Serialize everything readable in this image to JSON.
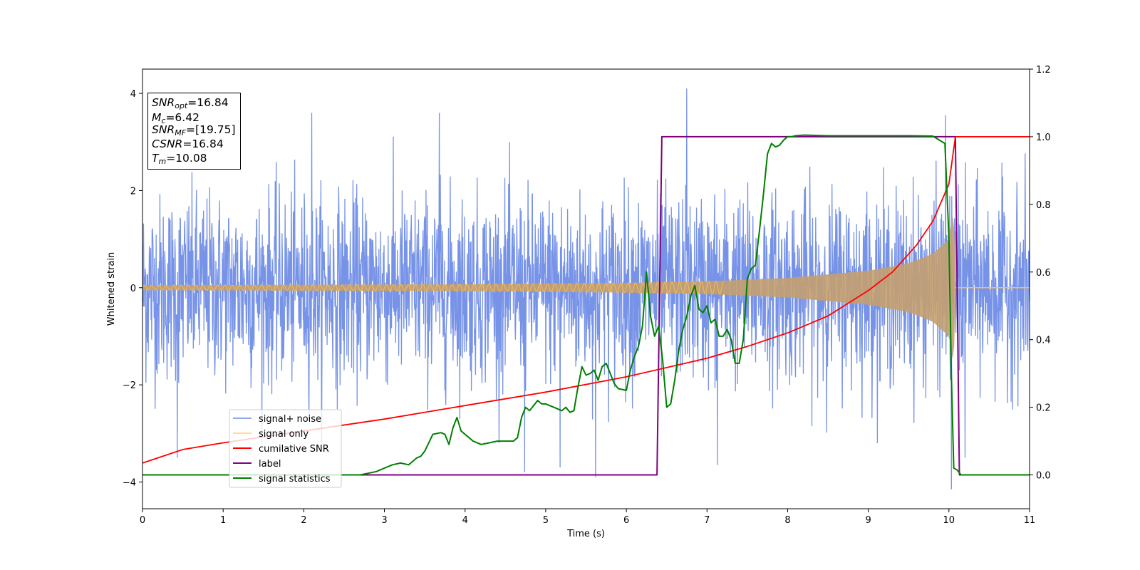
{
  "chart_data": {
    "type": "line",
    "xlabel": "Time (s)",
    "ylabel": "Whitened strain",
    "xlim": [
      0,
      11
    ],
    "ylim_left": [
      -4.55,
      4.5
    ],
    "ylim_right": [
      -0.1,
      1.2
    ],
    "x_ticks": [
      0,
      1,
      2,
      3,
      4,
      5,
      6,
      7,
      8,
      9,
      10,
      11
    ],
    "y_ticks_left": [
      -4,
      -2,
      0,
      2,
      4
    ],
    "y_ticks_right": [
      0.0,
      0.2,
      0.4,
      0.6,
      0.8,
      1.0,
      1.2
    ],
    "grid": false,
    "legend_position": "lower-left",
    "series": [
      {
        "name": "signal+ noise",
        "color": "#6b8ae6",
        "axis": "left",
        "description_kind": "noise",
        "noise_sigma": 1.0,
        "outliers": [
          [
            0.43,
            -3.5
          ],
          [
            2.1,
            3.6
          ],
          [
            3.68,
            3.6
          ],
          [
            4.74,
            -3.8
          ],
          [
            5.18,
            -3.7
          ],
          [
            5.62,
            -3.9
          ],
          [
            6.75,
            4.1
          ],
          [
            7.13,
            -3.65
          ],
          [
            9.96,
            3.55
          ],
          [
            10.03,
            -4.15
          ],
          [
            10.2,
            -3.5
          ]
        ]
      },
      {
        "name": "signal only",
        "color": "#ffbf40",
        "axis": "left",
        "chirp_amplitude": [
          [
            0,
            0.05
          ],
          [
            2,
            0.06
          ],
          [
            4,
            0.07
          ],
          [
            6,
            0.1
          ],
          [
            7,
            0.13
          ],
          [
            8,
            0.2
          ],
          [
            9,
            0.35
          ],
          [
            9.5,
            0.5
          ],
          [
            9.8,
            0.7
          ],
          [
            10.0,
            1.0
          ],
          [
            10.06,
            1.6
          ],
          [
            10.08,
            0.0
          ],
          [
            11,
            0.0
          ]
        ]
      },
      {
        "name": "cumilative SNR",
        "color": "#ff0000",
        "axis": "right",
        "x": [
          0,
          0.5,
          1,
          2,
          3,
          4,
          5,
          6,
          7,
          7.5,
          8,
          8.5,
          9,
          9.3,
          9.6,
          9.8,
          10.0,
          10.08,
          11
        ],
        "y": [
          0.035,
          0.075,
          0.095,
          0.13,
          0.165,
          0.205,
          0.245,
          0.29,
          0.345,
          0.38,
          0.42,
          0.47,
          0.545,
          0.6,
          0.68,
          0.75,
          0.86,
          1.0,
          1.0
        ]
      },
      {
        "name": "label",
        "color": "#800080",
        "axis": "right",
        "x": [
          0,
          6.38,
          6.44,
          10.08,
          10.13,
          11
        ],
        "y": [
          0.0,
          0.0,
          1.0,
          1.0,
          0.0,
          0.0
        ]
      },
      {
        "name": "signal statistics",
        "color": "#008000",
        "axis": "right",
        "x": [
          0,
          1,
          2,
          2.7,
          2.8,
          2.9,
          3.0,
          3.1,
          3.2,
          3.3,
          3.35,
          3.4,
          3.45,
          3.5,
          3.6,
          3.7,
          3.75,
          3.8,
          3.85,
          3.9,
          3.95,
          4.0,
          4.05,
          4.1,
          4.2,
          4.3,
          4.4,
          4.5,
          4.6,
          4.65,
          4.7,
          4.75,
          4.8,
          4.9,
          4.95,
          5.0,
          5.1,
          5.2,
          5.25,
          5.3,
          5.35,
          5.4,
          5.45,
          5.5,
          5.55,
          5.6,
          5.65,
          5.7,
          5.75,
          5.8,
          5.85,
          5.9,
          6.0,
          6.05,
          6.1,
          6.15,
          6.2,
          6.25,
          6.3,
          6.35,
          6.4,
          6.45,
          6.5,
          6.55,
          6.6,
          6.65,
          6.7,
          6.75,
          6.8,
          6.85,
          6.9,
          6.95,
          7.0,
          7.05,
          7.1,
          7.15,
          7.2,
          7.25,
          7.3,
          7.35,
          7.4,
          7.45,
          7.5,
          7.55,
          7.6,
          7.65,
          7.7,
          7.75,
          7.8,
          7.85,
          7.9,
          7.95,
          8.0,
          8.05,
          8.1,
          8.2,
          8.5,
          9.0,
          9.5,
          9.8,
          9.95,
          10.0,
          10.03,
          10.06,
          10.1,
          10.15,
          11
        ],
        "y": [
          0.0,
          0.0,
          0.0,
          0.0,
          0.005,
          0.01,
          0.02,
          0.03,
          0.035,
          0.03,
          0.04,
          0.05,
          0.055,
          0.07,
          0.12,
          0.125,
          0.12,
          0.09,
          0.14,
          0.17,
          0.13,
          0.12,
          0.11,
          0.1,
          0.09,
          0.095,
          0.1,
          0.1,
          0.1,
          0.11,
          0.17,
          0.2,
          0.19,
          0.22,
          0.21,
          0.21,
          0.2,
          0.19,
          0.2,
          0.185,
          0.19,
          0.26,
          0.32,
          0.295,
          0.3,
          0.31,
          0.28,
          0.32,
          0.33,
          0.3,
          0.27,
          0.255,
          0.25,
          0.31,
          0.35,
          0.38,
          0.44,
          0.6,
          0.47,
          0.41,
          0.44,
          0.34,
          0.2,
          0.21,
          0.28,
          0.37,
          0.43,
          0.47,
          0.53,
          0.56,
          0.49,
          0.48,
          0.5,
          0.45,
          0.46,
          0.41,
          0.41,
          0.43,
          0.4,
          0.33,
          0.33,
          0.4,
          0.58,
          0.61,
          0.62,
          0.72,
          0.83,
          0.95,
          0.98,
          0.97,
          0.975,
          0.99,
          1.0,
          1.0,
          1.003,
          1.005,
          1.003,
          1.003,
          1.003,
          1.002,
          0.98,
          0.7,
          0.3,
          0.02,
          0.015,
          0.0,
          0.0
        ]
      }
    ],
    "annotation": {
      "snr_opt": "=16.84",
      "mc": "=6.42",
      "snr_mf": "=[19.75]",
      "csnr": "=16.84",
      "tm": "=10.08"
    }
  },
  "legend": {
    "items": [
      "signal+ noise",
      "signal only",
      "cumilative SNR",
      "label",
      "signal statistics"
    ]
  }
}
